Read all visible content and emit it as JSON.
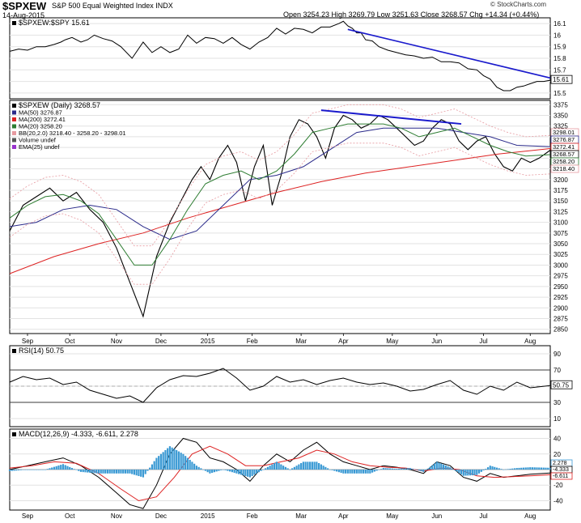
{
  "header": {
    "symbol": "$SPXEW",
    "index_name": "S&P 500 Equal Weighted Index  INDX",
    "date": "14-Aug-2015",
    "quote": "Open 3254.23  High 3269.79  Low 3251.63  Close 3268.57  Chg +14.34 (+0.44%)",
    "copyright": "© StockCharts.com"
  },
  "chart_data": [
    {
      "type": "line",
      "panel": "ratio",
      "legend": [
        "$SPXEW:$SPY 15.61"
      ],
      "y_ticks": [
        15.5,
        15.6,
        15.7,
        15.8,
        15.9,
        16.0,
        16.1
      ],
      "ylim": [
        15.45,
        16.15
      ],
      "last_value_label": "15.61",
      "series": [
        {
          "name": "$SPXEW:$SPY",
          "color": "#000000",
          "x": [
            0,
            4,
            8,
            12,
            16,
            20,
            23,
            25,
            28,
            32,
            35,
            38,
            42,
            46,
            50,
            55,
            60,
            64,
            68,
            72,
            76,
            80,
            84,
            88,
            92,
            96,
            100,
            104,
            108,
            112,
            116,
            120,
            124,
            128,
            132,
            136,
            140,
            144,
            148,
            150,
            152,
            154,
            156,
            158,
            160,
            163,
            166,
            170,
            174,
            178,
            182,
            186,
            190,
            194,
            198,
            202,
            206,
            210,
            213,
            216,
            219,
            222,
            225,
            228,
            231,
            234,
            237,
            240,
            243
          ],
          "y": [
            15.86,
            15.88,
            15.87,
            15.9,
            15.9,
            15.92,
            15.94,
            15.96,
            15.98,
            15.94,
            15.96,
            16.0,
            15.97,
            15.95,
            15.9,
            15.8,
            15.94,
            15.85,
            15.9,
            15.85,
            15.88,
            16.0,
            15.93,
            15.98,
            15.97,
            15.93,
            15.98,
            15.92,
            15.88,
            15.94,
            15.98,
            16.06,
            16.01,
            16.06,
            16.05,
            16.02,
            16.07,
            16.07,
            16.1,
            16.12,
            16.08,
            16.06,
            16.02,
            16.02,
            15.96,
            15.95,
            15.9,
            15.87,
            15.85,
            15.83,
            15.82,
            15.8,
            15.81,
            15.77,
            15.77,
            15.76,
            15.71,
            15.7,
            15.65,
            15.62,
            15.55,
            15.52,
            15.52,
            15.55,
            15.56,
            15.58,
            15.6,
            15.6,
            15.61
          ]
        },
        {
          "name": "trendline",
          "color": "#1a1acc",
          "x": [
            152,
            243
          ],
          "y": [
            16.05,
            15.63
          ]
        }
      ]
    },
    {
      "type": "line",
      "panel": "price",
      "legend": [
        "$SPXEW (Daily) 3268.57",
        "MA(50) 3276.87",
        "MA(200) 3272.41",
        "MA(20) 3258.20",
        "BB(20,2.0) 3218.40 - 3258.20 - 3298.01",
        "Volume undef",
        "EMA(25) undef"
      ],
      "legend_colors": [
        "#000000",
        "#2a2a8a",
        "#dd2222",
        "#2e7d32",
        "#e79aa0",
        "#555555",
        "#9932cc"
      ],
      "y_ticks": [
        2850,
        2875,
        2900,
        2925,
        2950,
        2975,
        3000,
        3025,
        3050,
        3075,
        3100,
        3125,
        3150,
        3175,
        3200,
        3225,
        3250,
        3275,
        3300,
        3325,
        3350,
        3375
      ],
      "ylim": [
        2840,
        3385
      ],
      "price_labels": [
        "3298.01",
        "3276.87",
        "3272.41",
        "3268.57",
        "3258.20",
        "3218.40"
      ],
      "x_ticks": [
        "Sep",
        "Oct",
        "Nov",
        "Dec",
        "2015",
        "Feb",
        "Mar",
        "Apr",
        "May",
        "Jun",
        "Jul",
        "Aug"
      ],
      "series": [
        {
          "name": "Close",
          "color": "#000000",
          "x": [
            0,
            6,
            12,
            18,
            24,
            30,
            36,
            42,
            48,
            54,
            60,
            66,
            72,
            78,
            82,
            86,
            90,
            94,
            98,
            102,
            106,
            110,
            114,
            118,
            122,
            126,
            130,
            134,
            138,
            142,
            146,
            150,
            154,
            158,
            162,
            166,
            170,
            174,
            178,
            182,
            186,
            190,
            194,
            198,
            202,
            206,
            210,
            214,
            218,
            222,
            226,
            230,
            234,
            238,
            243
          ],
          "y": [
            3080,
            3140,
            3160,
            3180,
            3150,
            3170,
            3130,
            3100,
            3040,
            2960,
            2880,
            3020,
            3100,
            3160,
            3200,
            3230,
            3200,
            3250,
            3280,
            3240,
            3150,
            3230,
            3280,
            3140,
            3210,
            3300,
            3340,
            3330,
            3300,
            3250,
            3320,
            3350,
            3340,
            3320,
            3330,
            3350,
            3340,
            3320,
            3300,
            3280,
            3290,
            3320,
            3340,
            3330,
            3290,
            3270,
            3290,
            3300,
            3260,
            3230,
            3220,
            3250,
            3240,
            3250,
            3268.57
          ]
        },
        {
          "name": "MA(200)",
          "color": "#dd2222",
          "x": [
            0,
            20,
            40,
            60,
            80,
            100,
            120,
            140,
            160,
            180,
            200,
            220,
            243
          ],
          "y": [
            2980,
            3020,
            3050,
            3075,
            3110,
            3140,
            3170,
            3195,
            3215,
            3230,
            3245,
            3260,
            3272.41
          ]
        },
        {
          "name": "MA(50)",
          "color": "#2a2a8a",
          "x": [
            0,
            12,
            24,
            36,
            48,
            60,
            72,
            84,
            96,
            108,
            120,
            132,
            144,
            156,
            168,
            180,
            192,
            204,
            216,
            228,
            243
          ],
          "y": [
            3090,
            3100,
            3130,
            3140,
            3130,
            3090,
            3060,
            3080,
            3140,
            3200,
            3210,
            3230,
            3270,
            3310,
            3320,
            3320,
            3320,
            3310,
            3300,
            3280,
            3276.87
          ]
        },
        {
          "name": "MA(20)",
          "color": "#2e7d32",
          "x": [
            0,
            8,
            16,
            24,
            32,
            40,
            48,
            56,
            64,
            72,
            80,
            88,
            96,
            104,
            112,
            120,
            128,
            136,
            144,
            152,
            160,
            168,
            176,
            184,
            192,
            200,
            208,
            216,
            224,
            232,
            243
          ],
          "y": [
            3110,
            3140,
            3160,
            3165,
            3150,
            3120,
            3060,
            3000,
            3000,
            3060,
            3130,
            3190,
            3210,
            3220,
            3200,
            3220,
            3260,
            3310,
            3320,
            3330,
            3330,
            3330,
            3320,
            3300,
            3310,
            3320,
            3300,
            3280,
            3265,
            3255,
            3258.2
          ]
        }
      ]
    },
    {
      "type": "line",
      "panel": "rsi",
      "legend": [
        "RSI(14) 50.75"
      ],
      "y_ticks": [
        10,
        30,
        50,
        70,
        90
      ],
      "ylim": [
        0,
        100
      ],
      "last_value_label": "50.75",
      "series": [
        {
          "name": "RSI(14)",
          "color": "#000000",
          "x": [
            0,
            6,
            12,
            18,
            24,
            30,
            36,
            42,
            48,
            54,
            60,
            66,
            72,
            78,
            84,
            90,
            96,
            102,
            108,
            114,
            120,
            126,
            132,
            138,
            144,
            150,
            156,
            162,
            168,
            174,
            180,
            186,
            192,
            198,
            204,
            210,
            216,
            222,
            228,
            234,
            243
          ],
          "y": [
            55,
            62,
            58,
            60,
            52,
            55,
            45,
            40,
            35,
            38,
            30,
            48,
            58,
            63,
            62,
            66,
            72,
            60,
            45,
            50,
            62,
            55,
            58,
            52,
            57,
            60,
            55,
            52,
            54,
            50,
            44,
            46,
            52,
            57,
            45,
            40,
            50,
            45,
            55,
            48,
            50.75
          ]
        }
      ]
    },
    {
      "type": "line",
      "panel": "macd",
      "legend": [
        "MACD(12,26,9) -4.333, -6.611, 2.278"
      ],
      "y_ticks": [
        -40,
        -20,
        0,
        20,
        40
      ],
      "ylim": [
        -52,
        52
      ],
      "value_labels": [
        "2.278",
        "-4.333",
        "-6.611"
      ],
      "series": [
        {
          "name": "MACD",
          "color": "#000000",
          "x": [
            0,
            8,
            16,
            24,
            32,
            40,
            48,
            54,
            60,
            66,
            72,
            78,
            84,
            90,
            96,
            102,
            108,
            114,
            120,
            126,
            132,
            138,
            144,
            150,
            156,
            162,
            168,
            174,
            180,
            186,
            192,
            198,
            204,
            210,
            216,
            222,
            228,
            234,
            243
          ],
          "y": [
            0,
            5,
            10,
            15,
            5,
            -10,
            -30,
            -45,
            -50,
            -20,
            20,
            40,
            35,
            15,
            10,
            0,
            -15,
            5,
            20,
            10,
            25,
            35,
            20,
            10,
            5,
            0,
            5,
            3,
            0,
            -5,
            10,
            5,
            -10,
            -15,
            -5,
            -10,
            -8,
            -6,
            -4.333
          ]
        },
        {
          "name": "Signal",
          "color": "#dd2222",
          "x": [
            0,
            10,
            20,
            30,
            40,
            50,
            58,
            66,
            74,
            82,
            90,
            98,
            106,
            114,
            122,
            130,
            138,
            146,
            154,
            162,
            170,
            178,
            186,
            194,
            202,
            210,
            218,
            226,
            234,
            243
          ],
          "y": [
            2,
            5,
            10,
            8,
            -5,
            -25,
            -40,
            -35,
            -10,
            20,
            30,
            20,
            5,
            5,
            10,
            15,
            25,
            20,
            10,
            5,
            3,
            2,
            -2,
            2,
            0,
            -8,
            -10,
            -9,
            -8,
            -6.611
          ]
        },
        {
          "name": "Histogram",
          "color": "#3b9ad4",
          "x": [
            0,
            8,
            16,
            24,
            32,
            40,
            48,
            54,
            60,
            66,
            72,
            78,
            84,
            90,
            96,
            102,
            108,
            114,
            120,
            126,
            132,
            138,
            144,
            150,
            156,
            162,
            168,
            174,
            180,
            186,
            192,
            198,
            204,
            210,
            216,
            222,
            228,
            234,
            243
          ],
          "y": [
            -2,
            0,
            0,
            7,
            -3,
            -5,
            -5,
            -5,
            -10,
            15,
            30,
            20,
            5,
            -5,
            0,
            -5,
            -10,
            0,
            10,
            0,
            10,
            10,
            0,
            -5,
            -5,
            -5,
            2,
            1,
            2,
            -3,
            10,
            3,
            -8,
            -7,
            5,
            0,
            2,
            3,
            2.278
          ]
        }
      ]
    }
  ]
}
